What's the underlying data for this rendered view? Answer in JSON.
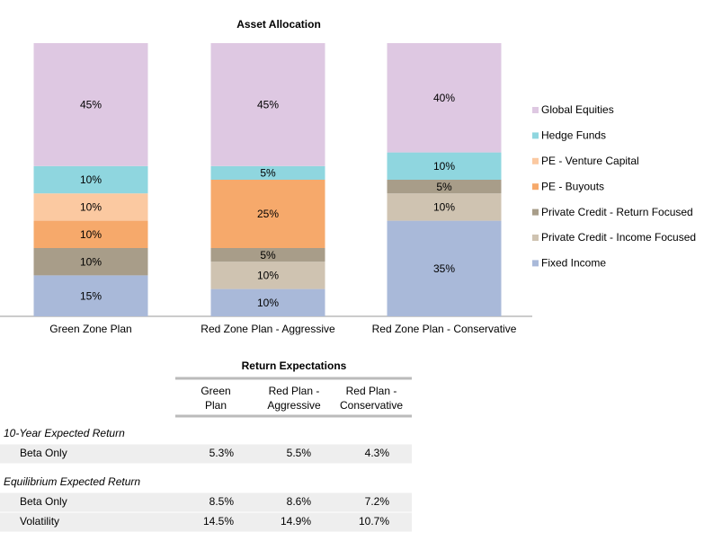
{
  "chart_data": {
    "type": "stacked_bar",
    "title": "Asset Allocation",
    "categories": [
      "Green Zone Plan",
      "Red Zone Plan - Aggressive",
      "Red Zone Plan - Conservative"
    ],
    "ylim": [
      0,
      100
    ],
    "legend": "right",
    "series": [
      {
        "name": "Fixed Income",
        "color": "#a9b9d9",
        "values": [
          15,
          10,
          35
        ],
        "value_labels": [
          "15%",
          "10%",
          "35%"
        ]
      },
      {
        "name": "Private Credit - Income Focused",
        "color": "#cfc3b1",
        "values": [
          0,
          10,
          10
        ],
        "value_labels": [
          null,
          "10%",
          "10%"
        ]
      },
      {
        "name": "Private Credit - Return Focused",
        "color": "#a89d89",
        "values": [
          10,
          5,
          5
        ],
        "value_labels": [
          "10%",
          "5%",
          "5%"
        ]
      },
      {
        "name": "PE - Buyouts",
        "color": "#f6a96b",
        "values": [
          10,
          25,
          0
        ],
        "value_labels": [
          "10%",
          "25%",
          null
        ]
      },
      {
        "name": "PE - Venture Capital",
        "color": "#fbc9a1",
        "values": [
          10,
          0,
          0
        ],
        "value_labels": [
          "10%",
          null,
          null
        ]
      },
      {
        "name": "Hedge Funds",
        "color": "#8fd6df",
        "values": [
          10,
          5,
          10
        ],
        "value_labels": [
          "10%",
          "5%",
          "10%"
        ]
      },
      {
        "name": "Global Equities",
        "color": "#dec8e2",
        "values": [
          45,
          45,
          40
        ],
        "value_labels": [
          "45%",
          "45%",
          "40%"
        ]
      }
    ]
  },
  "table": {
    "title": "Return Expectations",
    "columns": [
      [
        "Green",
        "Plan"
      ],
      [
        "Red Plan -",
        "Aggressive"
      ],
      [
        "Red Plan -",
        "Conservative"
      ]
    ],
    "sections": [
      {
        "title": "10-Year Expected Return",
        "rows": [
          [
            "Beta Only",
            "5.3%",
            "5.5%",
            "4.3%"
          ]
        ]
      },
      {
        "title": "Equilibrium Expected Return",
        "rows": [
          [
            "Beta Only",
            "8.5%",
            "8.6%",
            "7.2%"
          ],
          [
            "Volatility",
            "14.5%",
            "14.9%",
            "10.7%"
          ]
        ]
      }
    ]
  }
}
